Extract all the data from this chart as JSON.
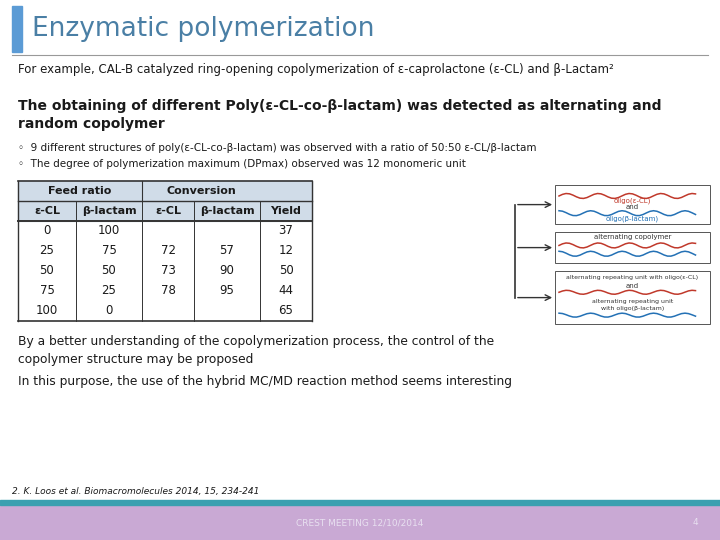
{
  "title": "Enzymatic polymerization",
  "title_color": "#4a7fa5",
  "title_bar_color": "#5b9bd5",
  "bg_color": "#ffffff",
  "footer_bar_color": "#3aa0b0",
  "footer_bg_color": "#c9a9d4",
  "footer_text": "CREST MEETING 12/10/2014",
  "footer_page": "4",
  "para1": "For example, CAL-B catalyzed ring-opening copolymerization of ε-caprolactone (ε-CL) and β-Lactam²",
  "para2_bold": "The obtaining of different Poly(ε-CL-co-β-lactam) was detected as alternating and\nrandom copolymer",
  "bullet1": "◦  9 different structures of poly(ε-CL-co-β-lactam) was observed with a ratio of 50:50 ε-CL/β-lactam",
  "bullet2": "◦  The degree of polymerization maximum (DPmax) observed was 12 monomeric unit",
  "para3": "By a better understanding of the copolymerization process, the control of the\ncopolymer structure may be proposed",
  "para4": "In this purpose, the use of the hybrid MC/MD reaction method seems interesting",
  "footnote": "2. K. Loos et al. Biomacromolecules 2014, 15, 234-241",
  "table_headers_row1_left": "Feed ratio",
  "table_headers_row1_right": "Conversion",
  "table_headers_row2": [
    "ε-CL",
    "β-lactam",
    "ε-CL",
    "β-lactam",
    "Yield"
  ],
  "table_data": [
    [
      "0",
      "100",
      "",
      "",
      "37"
    ],
    [
      "25",
      "75",
      "72",
      "57",
      "12"
    ],
    [
      "50",
      "50",
      "73",
      "90",
      "50"
    ],
    [
      "75",
      "25",
      "78",
      "95",
      "44"
    ],
    [
      "100",
      "0",
      "",
      "",
      "65"
    ]
  ],
  "header_bg": "#d0dce8",
  "table_line_color": "#333333",
  "text_color": "#1a1a1a",
  "right_box1_lines": [
    [
      "#c0392b",
      "oligo(ε-CL)"
    ],
    [
      "#2471b5",
      "oligo(β-lactam)"
    ]
  ],
  "right_box2_label": "alternating copolymer",
  "right_box3_lines": [
    "alternating repeating unit with oligo(ε-CL)",
    "and",
    "alternating repeating unit",
    "with oligo(β-lactam)"
  ]
}
